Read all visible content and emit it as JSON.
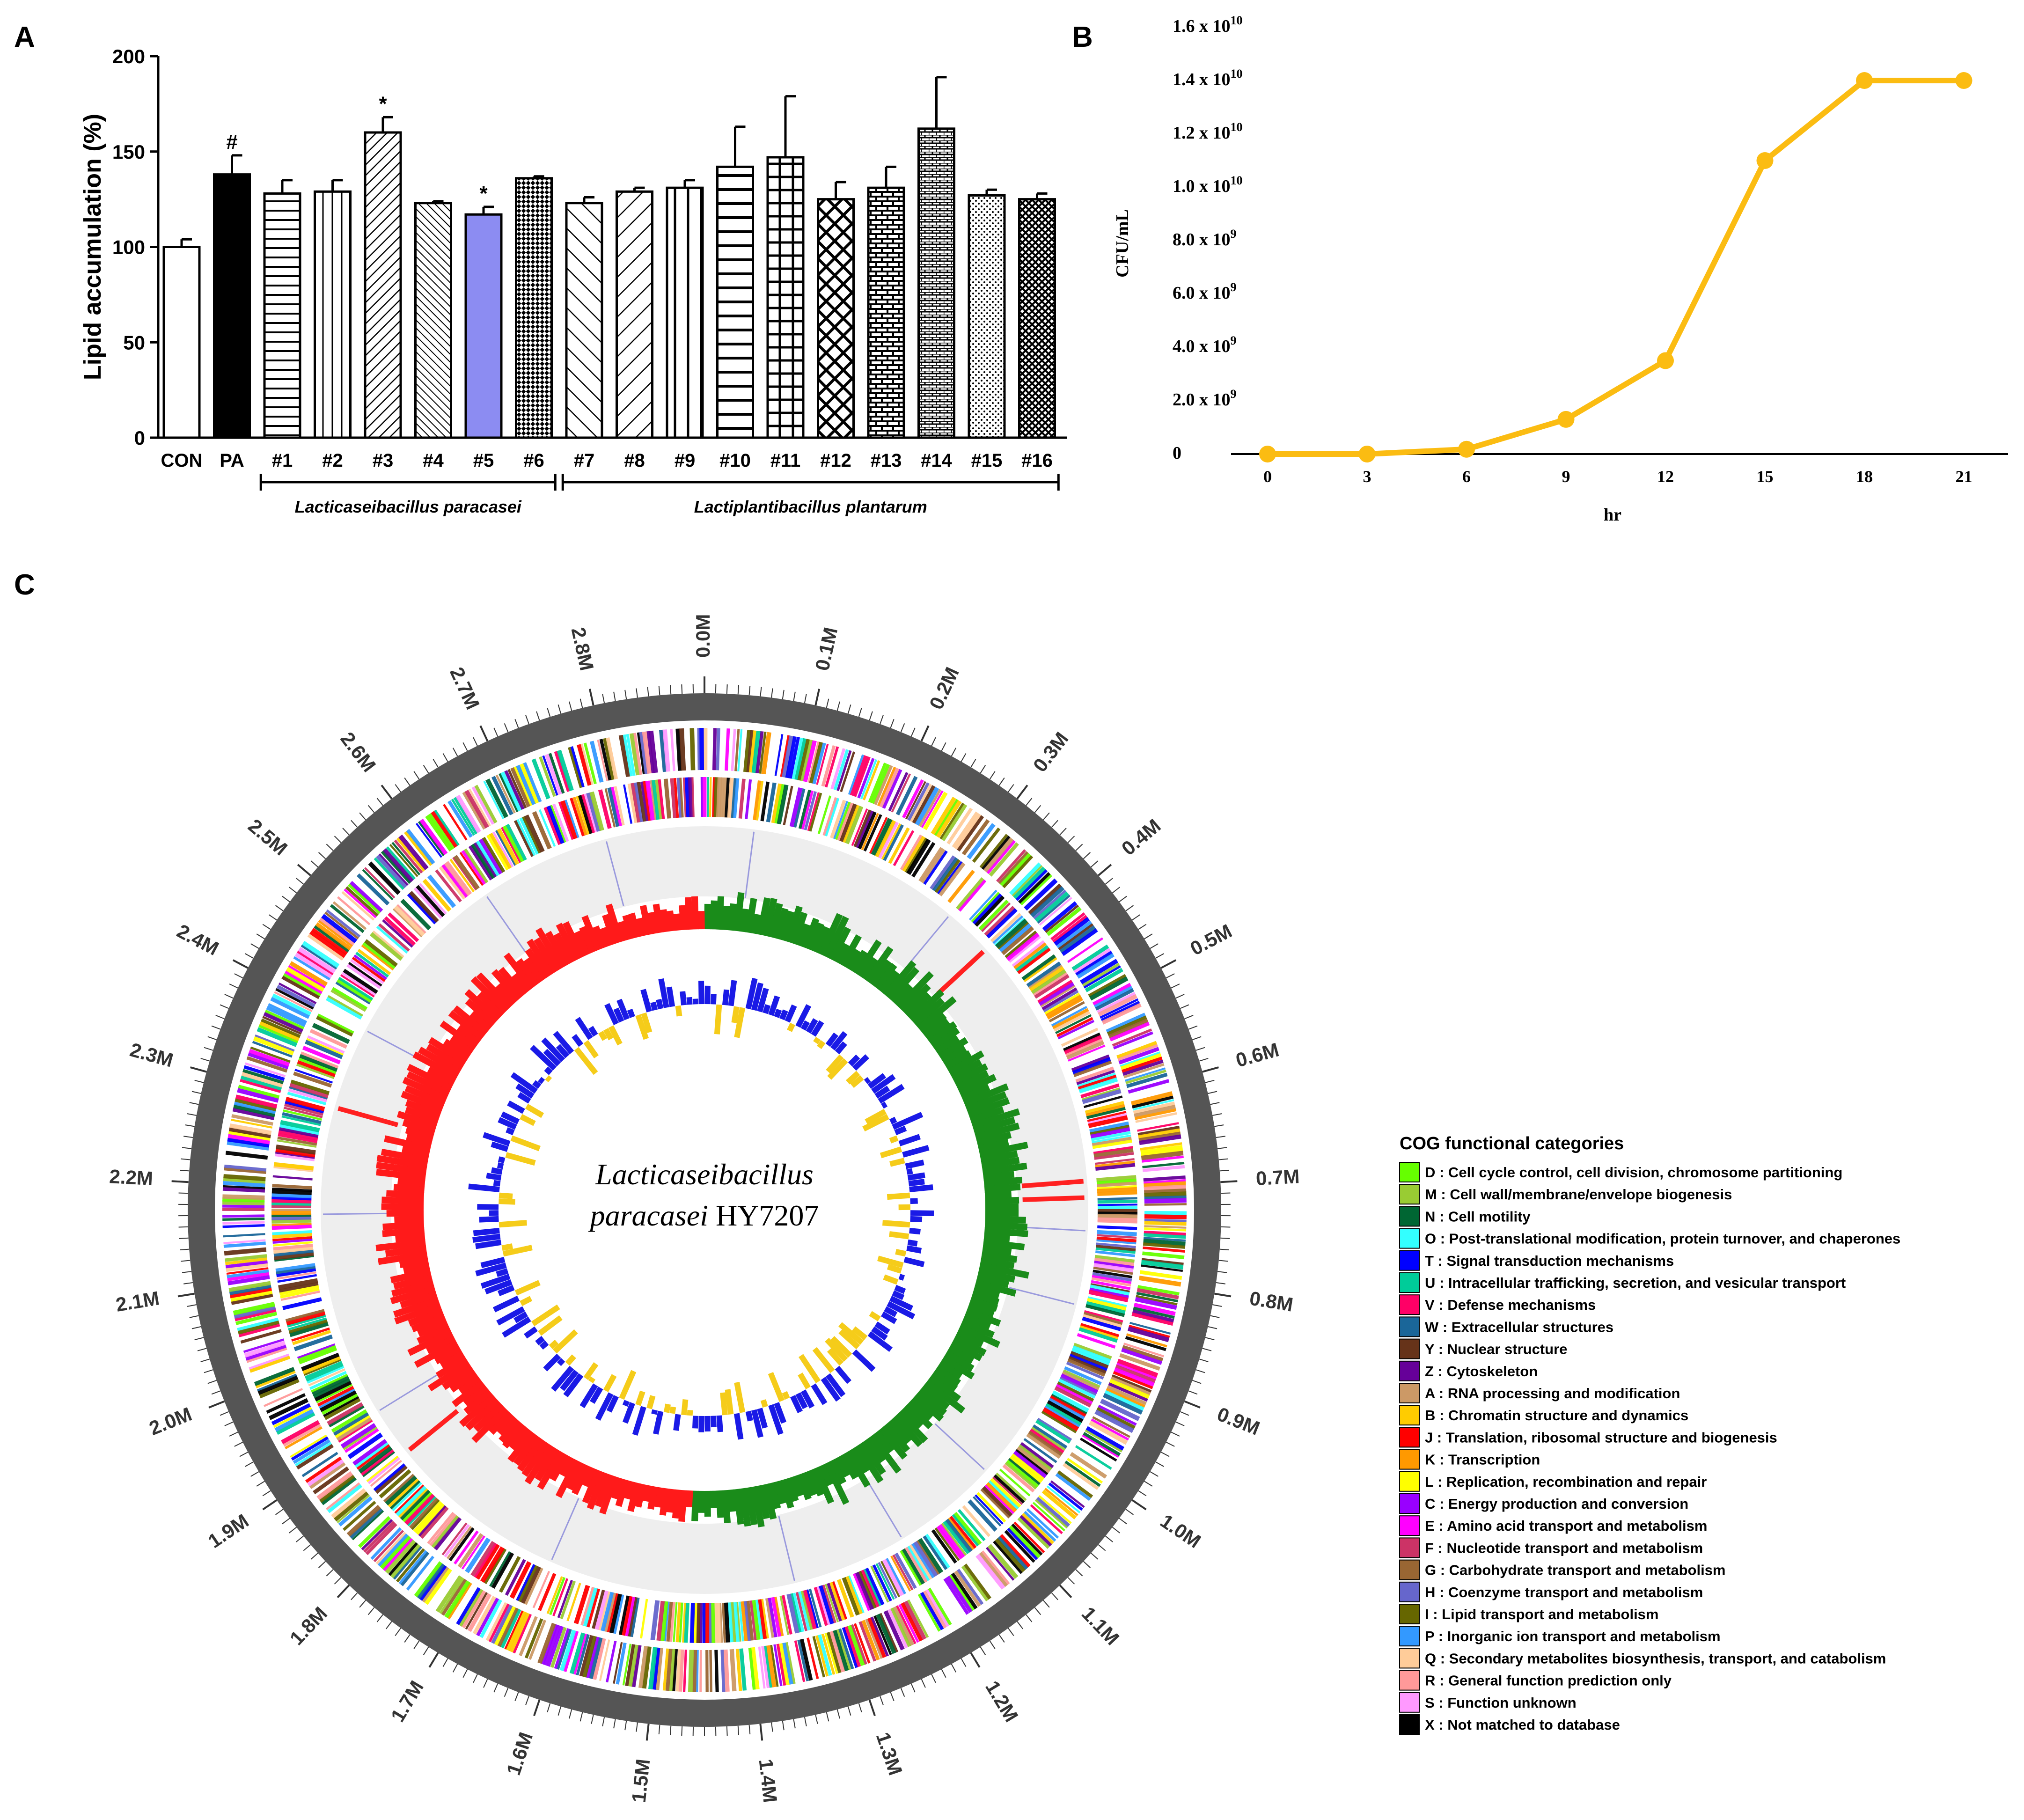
{
  "panels": {
    "a": "A",
    "b": "B",
    "c": "C"
  },
  "chart_data": [
    {
      "type": "bar",
      "ylabel": "Lipid accumulation (%)",
      "xlabel": "",
      "ylim": [
        0,
        200
      ],
      "yticks": [
        "0",
        "50",
        "100",
        "150",
        "200"
      ],
      "categories": [
        "CON",
        "PA",
        "#1",
        "#2",
        "#3",
        "#4",
        "#5",
        "#6",
        "#7",
        "#8",
        "#9",
        "#10",
        "#11",
        "#12",
        "#13",
        "#14",
        "#15",
        "#16"
      ],
      "values": [
        100,
        138,
        128,
        129,
        160,
        123,
        117,
        136,
        123,
        129,
        131,
        142,
        147,
        125,
        131,
        162,
        127,
        125
      ],
      "errors": [
        4,
        10,
        7,
        6,
        8,
        1,
        4,
        1,
        3,
        2,
        4,
        21,
        32,
        9,
        11,
        27,
        3,
        3
      ],
      "fills": [
        "white",
        "black",
        "hlines",
        "vlines",
        "diag",
        "bdiag",
        "#8c8cf2",
        "checker",
        "bdiag-wide",
        "diag-wide",
        "vlines-wide",
        "hlines-wide",
        "grid",
        "crosshatch",
        "brick",
        "brick-dense",
        "dots",
        "weave"
      ],
      "annotations": [
        {
          "category": "PA",
          "text": "#"
        },
        {
          "category": "#3",
          "text": "*"
        },
        {
          "category": "#5",
          "text": "*"
        }
      ],
      "groups": [
        {
          "label": "Lacticaseibacillus paracasei",
          "from": "#1",
          "to": "#6"
        },
        {
          "label": "Lactiplantibacillus plantarum",
          "from": "#7",
          "to": "#16"
        }
      ],
      "grid": false
    },
    {
      "type": "line",
      "ylabel": "CFU/mL",
      "xlabel": "hr",
      "x": [
        0,
        3,
        6,
        9,
        12,
        15,
        18,
        21
      ],
      "y": [
        0,
        0,
        180000000.0,
        1300000000.0,
        3500000000.0,
        11000000000.0,
        14000000000.0,
        14000000000.0
      ],
      "ylim": [
        0,
        16000000000.0
      ],
      "yticks": [
        {
          "base": "0",
          "exp": ""
        },
        {
          "base": "2.0 x 10",
          "exp": "9"
        },
        {
          "base": "4.0 x 10",
          "exp": "9"
        },
        {
          "base": "6.0 x 10",
          "exp": "9"
        },
        {
          "base": "8.0 x 10",
          "exp": "9"
        },
        {
          "base": "1.0 x 10",
          "exp": "10"
        },
        {
          "base": "1.2 x 10",
          "exp": "10"
        },
        {
          "base": "1.4 x 10",
          "exp": "10"
        },
        {
          "base": "1.6 x 10",
          "exp": "10"
        }
      ],
      "color": "#fbbc12",
      "grid": false
    }
  ],
  "genome_map": {
    "title_line1": "Lacticaseibacillus",
    "title_line2_italic": "paracasei",
    "title_line2_plain": " HY7207",
    "scale_labels": [
      "0.0M",
      "0.1M",
      "0.2M",
      "0.3M",
      "0.4M",
      "0.5M",
      "0.6M",
      "0.7M",
      "0.8M",
      "0.9M",
      "1.0M",
      "1.1M",
      "1.2M",
      "1.3M",
      "1.4M",
      "1.5M",
      "1.6M",
      "1.7M",
      "1.8M",
      "1.9M",
      "2.0M",
      "2.1M",
      "2.2M",
      "2.3M",
      "2.4M",
      "2.5M",
      "2.6M",
      "2.7M",
      "2.8M"
    ],
    "gc_skew_positive_color": "#1a8c1a",
    "gc_skew_negative_color": "#ff1a1a",
    "gc_content_high_color": "#1a1ae6",
    "gc_content_low_color": "#f5cc1a"
  },
  "legend": {
    "title": "COG functional categories",
    "items": [
      {
        "label": "D : Cell cycle control, cell division, chromosome partitioning",
        "color": "#66ff00"
      },
      {
        "label": "M : Cell wall/membrane/envelope biogenesis",
        "color": "#99cc33"
      },
      {
        "label": "N : Cell motility",
        "color": "#006633"
      },
      {
        "label": "O : Post-translational modification, protein turnover, and chaperones",
        "color": "#33ffff"
      },
      {
        "label": "T : Signal transduction mechanisms",
        "color": "#0000ff"
      },
      {
        "label": "U : Intracellular trafficking, secretion, and vesicular transport",
        "color": "#00cc99"
      },
      {
        "label": "V : Defense mechanisms",
        "color": "#ff0066"
      },
      {
        "label": "W : Extracellular structures",
        "color": "#1a6699"
      },
      {
        "label": "Y : Nuclear structure",
        "color": "#663319"
      },
      {
        "label": "Z : Cytoskeleton",
        "color": "#660099"
      },
      {
        "label": "A : RNA processing and modification",
        "color": "#cc9966"
      },
      {
        "label": "B : Chromatin structure and dynamics",
        "color": "#ffcc00"
      },
      {
        "label": "J : Translation, ribosomal structure and biogenesis",
        "color": "#ff0000"
      },
      {
        "label": "K : Transcription",
        "color": "#ff9900"
      },
      {
        "label": "L : Replication, recombination and repair",
        "color": "#ffff00"
      },
      {
        "label": "C : Energy production and conversion",
        "color": "#9900ff"
      },
      {
        "label": "E : Amino acid transport and metabolism",
        "color": "#ff00ff"
      },
      {
        "label": "F : Nucleotide transport and metabolism",
        "color": "#cc3366"
      },
      {
        "label": "G : Carbohydrate transport and metabolism",
        "color": "#996633"
      },
      {
        "label": "H : Coenzyme transport and metabolism",
        "color": "#6666cc"
      },
      {
        "label": "I : Lipid transport and metabolism",
        "color": "#666600"
      },
      {
        "label": "P : Inorganic ion transport and metabolism",
        "color": "#3399ff"
      },
      {
        "label": "Q : Secondary metabolites biosynthesis, transport, and catabolism",
        "color": "#ffcc99"
      },
      {
        "label": "R : General function prediction only",
        "color": "#ff9999"
      },
      {
        "label": "S : Function unknown",
        "color": "#ff99ff"
      },
      {
        "label": "X : Not matched to database",
        "color": "#000000"
      }
    ]
  }
}
